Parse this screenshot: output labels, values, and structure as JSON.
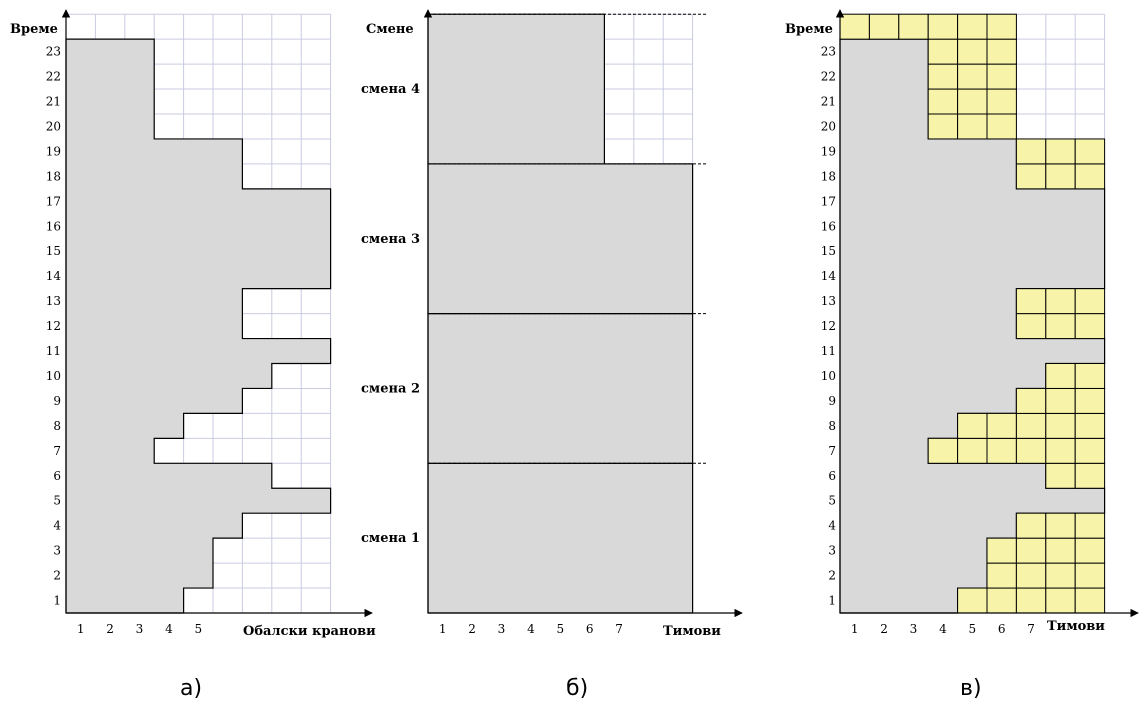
{
  "panels": [
    {
      "id": "a",
      "caption": "а)",
      "y_axis_label": "Време",
      "x_axis_label": "Обалски кранови",
      "y_ticks": [
        "1",
        "2",
        "3",
        "4",
        "5",
        "6",
        "7",
        "8",
        "9",
        "10",
        "11",
        "12",
        "13",
        "14",
        "15",
        "16",
        "17",
        "18",
        "19",
        "20",
        "21",
        "22",
        "23"
      ],
      "x_ticks": [
        "1",
        "2",
        "3",
        "4",
        "5"
      ],
      "busy_cranes_per_hour": [
        4,
        5,
        5,
        6,
        9,
        7,
        3,
        4,
        6,
        7,
        9,
        6,
        6,
        9,
        9,
        9,
        9,
        6,
        6,
        3,
        3,
        3,
        3
      ],
      "capacity": 9,
      "colors": {
        "busy": "#d9d9d9",
        "grid": "#c9cbe2"
      }
    },
    {
      "id": "b",
      "caption": "б)",
      "y_axis_label": "Смене",
      "x_axis_label": "Тимови",
      "x_ticks": [
        "1",
        "2",
        "3",
        "4",
        "5",
        "6",
        "7"
      ],
      "shifts": [
        {
          "label": "смена 1",
          "teams": 9
        },
        {
          "label": "смена 2",
          "teams": 9
        },
        {
          "label": "смена 3",
          "teams": 9
        },
        {
          "label": "смена 4",
          "teams": 6
        }
      ],
      "colors": {
        "assigned": "#d9d9d9",
        "grid": "#c9cbe2"
      }
    },
    {
      "id": "c",
      "caption": "в)",
      "y_axis_label": "Време",
      "x_axis_label": "Тимови",
      "y_ticks": [
        "1",
        "2",
        "3",
        "4",
        "5",
        "6",
        "7",
        "8",
        "9",
        "10",
        "11",
        "12",
        "13",
        "14",
        "15",
        "16",
        "17",
        "18",
        "19",
        "20",
        "21",
        "22",
        "23"
      ],
      "x_ticks": [
        "1",
        "2",
        "3",
        "4",
        "5",
        "6",
        "7"
      ],
      "busy_cranes_per_hour": [
        4,
        5,
        5,
        6,
        9,
        7,
        3,
        4,
        6,
        7,
        9,
        6,
        6,
        9,
        9,
        9,
        9,
        6,
        6,
        3,
        3,
        3,
        3
      ],
      "teams_per_hour": [
        9,
        9,
        9,
        9,
        9,
        9,
        9,
        9,
        9,
        9,
        9,
        9,
        9,
        9,
        9,
        9,
        9,
        9,
        9,
        6,
        6,
        6,
        6
      ],
      "top_row_idle_teams": 6,
      "colors": {
        "busy": "#d9d9d9",
        "idle": "#f7f3a8",
        "grid": "#c9cbe2"
      }
    }
  ]
}
